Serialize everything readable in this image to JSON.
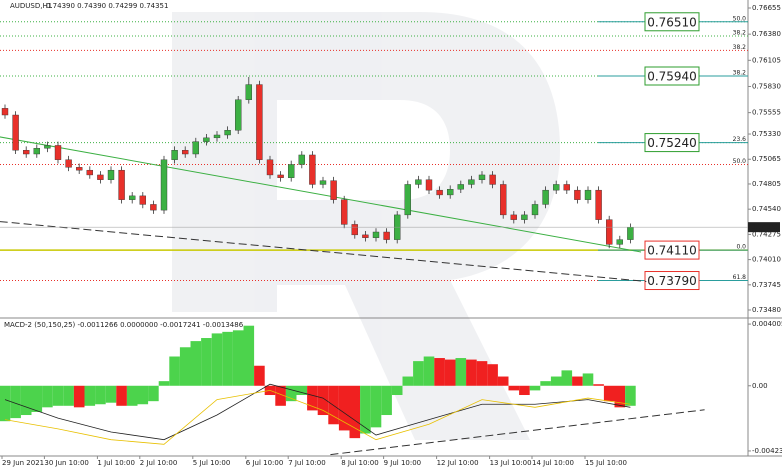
{
  "chart_data": [
    {
      "type": "candlestick",
      "title": "AUDUSD,H1",
      "subtitle": "0.74390 0.74390 0.74299 0.74351",
      "open": [
        0.756,
        0.7553,
        0.7516,
        0.7512,
        0.7518,
        0.7521,
        0.7506,
        0.7498,
        0.7495,
        0.749,
        0.7485,
        0.7495,
        0.7464,
        0.7468,
        0.7459,
        0.7453,
        0.7506,
        0.7516,
        0.7512,
        0.7525,
        0.7529,
        0.7532,
        0.7537,
        0.7569,
        0.7585,
        0.7506,
        0.749,
        0.7487,
        0.7501,
        0.7511,
        0.748,
        0.7484,
        0.7464,
        0.7438,
        0.7427,
        0.7424,
        0.743,
        0.7422,
        0.7448,
        0.748,
        0.7485,
        0.7474,
        0.7469,
        0.7475,
        0.748,
        0.7485,
        0.749,
        0.748,
        0.7448,
        0.7443,
        0.7448,
        0.7459,
        0.7474,
        0.748,
        0.7474,
        0.7464,
        0.7474,
        0.7443,
        0.7417,
        0.7422
      ],
      "high": [
        0.7564,
        0.7557,
        0.752,
        0.7522,
        0.7525,
        0.7525,
        0.751,
        0.7502,
        0.7499,
        0.7494,
        0.7499,
        0.7499,
        0.7472,
        0.7472,
        0.7463,
        0.751,
        0.752,
        0.752,
        0.7529,
        0.7533,
        0.7536,
        0.7541,
        0.7573,
        0.7593,
        0.7589,
        0.751,
        0.7494,
        0.7505,
        0.7515,
        0.7515,
        0.7488,
        0.7488,
        0.7468,
        0.7442,
        0.7431,
        0.7434,
        0.7434,
        0.7452,
        0.7484,
        0.7489,
        0.7489,
        0.7478,
        0.7479,
        0.7484,
        0.7489,
        0.7494,
        0.7494,
        0.7484,
        0.7452,
        0.7452,
        0.7463,
        0.7478,
        0.7484,
        0.7484,
        0.7478,
        0.7478,
        0.7478,
        0.7447,
        0.7426,
        0.7439
      ],
      "low": [
        0.7549,
        0.7512,
        0.7508,
        0.7508,
        0.7514,
        0.7502,
        0.7494,
        0.7491,
        0.7486,
        0.7481,
        0.7481,
        0.746,
        0.746,
        0.7455,
        0.7449,
        0.7449,
        0.7502,
        0.7508,
        0.7508,
        0.7521,
        0.7525,
        0.7528,
        0.7533,
        0.7565,
        0.7502,
        0.7486,
        0.7483,
        0.7483,
        0.7497,
        0.7476,
        0.7476,
        0.746,
        0.7434,
        0.7423,
        0.742,
        0.742,
        0.7418,
        0.7418,
        0.7444,
        0.7476,
        0.747,
        0.7465,
        0.7465,
        0.7471,
        0.7476,
        0.7481,
        0.7476,
        0.7444,
        0.7439,
        0.7439,
        0.7444,
        0.7455,
        0.747,
        0.747,
        0.746,
        0.746,
        0.7439,
        0.7413,
        0.7413,
        0.7418
      ],
      "close": [
        0.7553,
        0.7516,
        0.7512,
        0.7518,
        0.7521,
        0.7506,
        0.7498,
        0.7495,
        0.749,
        0.7485,
        0.7495,
        0.7464,
        0.7468,
        0.7459,
        0.7453,
        0.7506,
        0.7516,
        0.7512,
        0.7525,
        0.7529,
        0.7532,
        0.7537,
        0.7569,
        0.7585,
        0.7506,
        0.749,
        0.7487,
        0.7501,
        0.7511,
        0.748,
        0.7484,
        0.7464,
        0.7438,
        0.7427,
        0.7424,
        0.743,
        0.7422,
        0.7448,
        0.748,
        0.7485,
        0.7474,
        0.7469,
        0.7475,
        0.748,
        0.7485,
        0.749,
        0.748,
        0.7448,
        0.7443,
        0.7448,
        0.7459,
        0.7474,
        0.748,
        0.7474,
        0.7464,
        0.7474,
        0.7443,
        0.7417,
        0.7422,
        0.7435
      ],
      "up_color": "#3cb043",
      "down_color": "#e8302a",
      "ylim": [
        0.73396,
        0.76739
      ],
      "yticks": [
        0.76655,
        {
          "value": 0.7638,
          "label": "0.76380"
        },
        0.76105,
        {
          "value": 0.7583,
          "label": "0.75830"
        },
        0.75555,
        {
          "value": 0.7533,
          "label": "0.75330"
        },
        0.75065,
        0.74805,
        {
          "value": 0.7454,
          "label": "0.74540"
        },
        0.74275,
        {
          "value": 0.7401,
          "label": "0.74010"
        },
        0.73745,
        {
          "value": 0.7348,
          "label": "0.73480"
        }
      ],
      "levels": [
        {
          "value": 0.7651,
          "fib": "50.0",
          "color": "#3cb043",
          "label": "0.76510",
          "tag_color": "#2e9d2e"
        },
        {
          "value": 0.7636,
          "fib": "38.2",
          "color": "#3cb043"
        },
        {
          "value": 0.7621,
          "fib": "38.2",
          "color": "#e8302a"
        },
        {
          "value": 0.7594,
          "fib": "38.2",
          "color": "#3cb043",
          "label": "0.75940",
          "tag_color": "#2e9d2e"
        },
        {
          "value": 0.7524,
          "fib": "23.6",
          "color": "#3cb043",
          "label": "0.75240",
          "tag_color": "#2e9d2e"
        },
        {
          "value": 0.7501,
          "fib": "50.0",
          "color": "#e8302a"
        },
        {
          "value": 0.7411,
          "fib": "0.0",
          "color": "#c8c800",
          "label": "0.74110",
          "tag_color": "#e8302a"
        },
        {
          "value": 0.7379,
          "fib": "61.8",
          "color": "#e8302a",
          "label": "0.73790",
          "tag_color": "#e8302a"
        }
      ],
      "last_price": 0.74351,
      "trendlines": [
        {
          "x": [
            -0.5,
            60
          ],
          "y": [
            0.753,
            0.7409
          ],
          "color": "#3cb043"
        },
        {
          "x": [
            -0.5,
            60.5
          ],
          "y": [
            0.7441,
            0.7378
          ],
          "color": "#333333",
          "dashed": true
        }
      ],
      "xticks": [
        {
          "value": 0,
          "label": "29 Jun 2021"
        },
        {
          "value": 4,
          "label": "30 Jun 10:00"
        },
        {
          "value": 9,
          "label": "1 Jul 10:00"
        },
        {
          "value": 13,
          "label": "2 Jul 10:00"
        },
        {
          "value": 18,
          "label": "5 Jul 10:00"
        },
        {
          "value": 23,
          "label": "6 Jul 10:00"
        },
        {
          "value": 27,
          "label": "7 Jul 10:00"
        },
        {
          "value": 32,
          "label": "8 Jul 10:00"
        },
        {
          "value": 36,
          "label": "9 Jul 10:00"
        },
        {
          "value": 41,
          "label": "12 Jul 10:00"
        },
        {
          "value": 46,
          "label": "13 Jul 10:00"
        },
        {
          "value": 50,
          "label": "14 Jul 10:00"
        },
        {
          "value": 55,
          "label": "15 Jul 10:00"
        }
      ]
    },
    {
      "type": "macd",
      "title": "MACD-2 (50,150,25) -0.0011266 0.0000000 -0.0017241 -0.0013486",
      "values": [
        -0.0023,
        -0.0021,
        -0.0019,
        -0.0017,
        -0.0014,
        -0.0013,
        -0.0013,
        -0.0014,
        -0.0013,
        -0.0012,
        -0.0011,
        -0.0013,
        -0.0013,
        -0.0012,
        -0.001,
        0.0003,
        0.0019,
        0.0025,
        0.0029,
        0.0031,
        0.0034,
        0.0035,
        0.0036,
        0.0039,
        0.0013,
        -0.0006,
        -0.0013,
        -0.001,
        -0.0006,
        -0.0016,
        -0.0019,
        -0.0025,
        -0.0029,
        -0.0034,
        -0.0031,
        -0.0027,
        -0.0019,
        -0.0006,
        0.0006,
        0.0016,
        0.0019,
        0.0018,
        0.0017,
        0.0018,
        0.0017,
        0.0016,
        0.0014,
        0.0006,
        -0.0003,
        -0.0006,
        -0.0003,
        0.0003,
        0.0006,
        0.001,
        0.0006,
        0.0008,
        0.0001,
        -0.001,
        -0.0014,
        -0.0013
      ],
      "up_color": "#4cd34c",
      "down_color": "#f02020",
      "series": [
        {
          "color": "#222222",
          "x": [
            0,
            5,
            10,
            15,
            20,
            25,
            30,
            35,
            40,
            45,
            50,
            55,
            59
          ],
          "values": [
            -0.0009,
            -0.0021,
            -0.003,
            -0.0035,
            -0.0019,
            0.0001,
            -0.0008,
            -0.0032,
            -0.0022,
            -0.0012,
            -0.0012,
            -0.0009,
            -0.0014
          ]
        },
        {
          "color": "#e8c000",
          "x": [
            0,
            5,
            10,
            15,
            20,
            25,
            30,
            35,
            40,
            45,
            50,
            55,
            59
          ],
          "values": [
            -0.0022,
            -0.0028,
            -0.0035,
            -0.0038,
            -0.0009,
            -0.0003,
            -0.0016,
            -0.0035,
            -0.0025,
            -0.0009,
            -0.0014,
            -0.0008,
            -0.0012
          ]
        }
      ],
      "trendlines": [
        {
          "x": [
            30.7,
            66
          ],
          "y": [
            -0.00447,
            -0.00156
          ],
          "color": "#333333",
          "dashed": true
        }
      ],
      "ylim": [
        -0.00456,
        0.0044
      ],
      "yticks": [
        0.0040055,
        {
          "value": 0,
          "label": "0.00"
        },
        -0.004232
      ]
    }
  ]
}
